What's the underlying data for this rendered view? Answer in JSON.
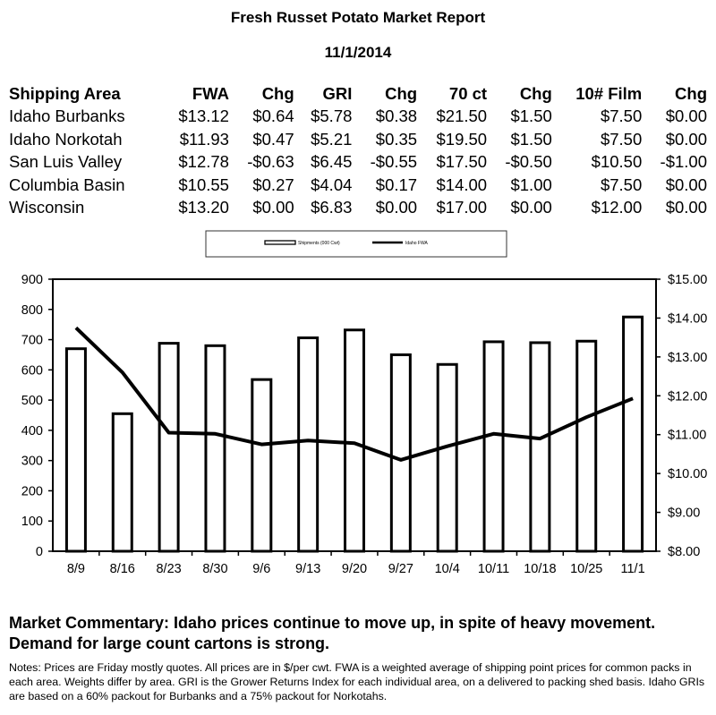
{
  "report": {
    "title": "Fresh Russet Potato Market Report",
    "date": "11/1/2014"
  },
  "price_table": {
    "headers": [
      "Shipping Area",
      "FWA",
      "Chg",
      "GRI",
      "Chg",
      "70 ct",
      "Chg",
      "10# Film",
      "Chg"
    ],
    "rows": [
      [
        "Idaho Burbanks",
        "$13.12",
        "$0.64",
        "$5.78",
        "$0.38",
        "$21.50",
        "$1.50",
        "$7.50",
        "$0.00"
      ],
      [
        "Idaho Norkotah",
        "$11.93",
        "$0.47",
        "$5.21",
        "$0.35",
        "$19.50",
        "$1.50",
        "$7.50",
        "$0.00"
      ],
      [
        "San Luis Valley",
        "$12.78",
        "-$0.63",
        "$6.45",
        "-$0.55",
        "$17.50",
        "-$0.50",
        "$10.50",
        "-$1.00"
      ],
      [
        "Columbia Basin",
        "$10.55",
        "$0.27",
        "$4.04",
        "$0.17",
        "$14.00",
        "$1.00",
        "$7.50",
        "$0.00"
      ],
      [
        "Wisconsin",
        "$13.20",
        "$0.00",
        "$6.83",
        "$0.00",
        "$17.00",
        "$0.00",
        "$12.00",
        "$0.00"
      ]
    ]
  },
  "chart_data": {
    "type": "bar",
    "categories": [
      "8/9",
      "8/16",
      "8/23",
      "8/30",
      "9/6",
      "9/13",
      "9/20",
      "9/27",
      "10/4",
      "10/11",
      "10/18",
      "10/25",
      "11/1"
    ],
    "series": [
      {
        "name": "Shipments (000 Cwt)",
        "type": "bar",
        "axis": "left",
        "values": [
          670,
          455,
          688,
          680,
          568,
          706,
          732,
          650,
          618,
          693,
          690,
          695,
          775
        ]
      },
      {
        "name": "Idaho FWA",
        "type": "line",
        "axis": "right",
        "values": [
          13.75,
          12.6,
          11.05,
          11.02,
          10.75,
          10.85,
          10.78,
          10.35,
          10.7,
          11.02,
          10.9,
          11.45,
          11.93
        ]
      }
    ],
    "ylim_left": [
      0,
      900
    ],
    "yticks_left": [
      "0",
      "100",
      "200",
      "300",
      "400",
      "500",
      "600",
      "700",
      "800",
      "900"
    ],
    "ylim_right": [
      8,
      15
    ],
    "yticks_right": [
      "$8.00",
      "$9.00",
      "$10.00",
      "$11.00",
      "$12.00",
      "$13.00",
      "$14.00",
      "$15.00"
    ],
    "legend_position": "top-center",
    "grid": false
  },
  "commentary": "Market Commentary: Idaho prices continue to move up, in spite of heavy movement. Demand for large count cartons is strong.",
  "notes": "Notes: Prices are Friday mostly quotes. All prices are in $/per cwt. FWA is a weighted average of shipping point prices for  common packs in each area. Weights differ by area. GRI is the Grower Returns Index for each individual area, on a delivered to packing shed basis. Idaho GRIs are based on a 60% packout for Burbanks and a 75% packout for Norkotahs."
}
